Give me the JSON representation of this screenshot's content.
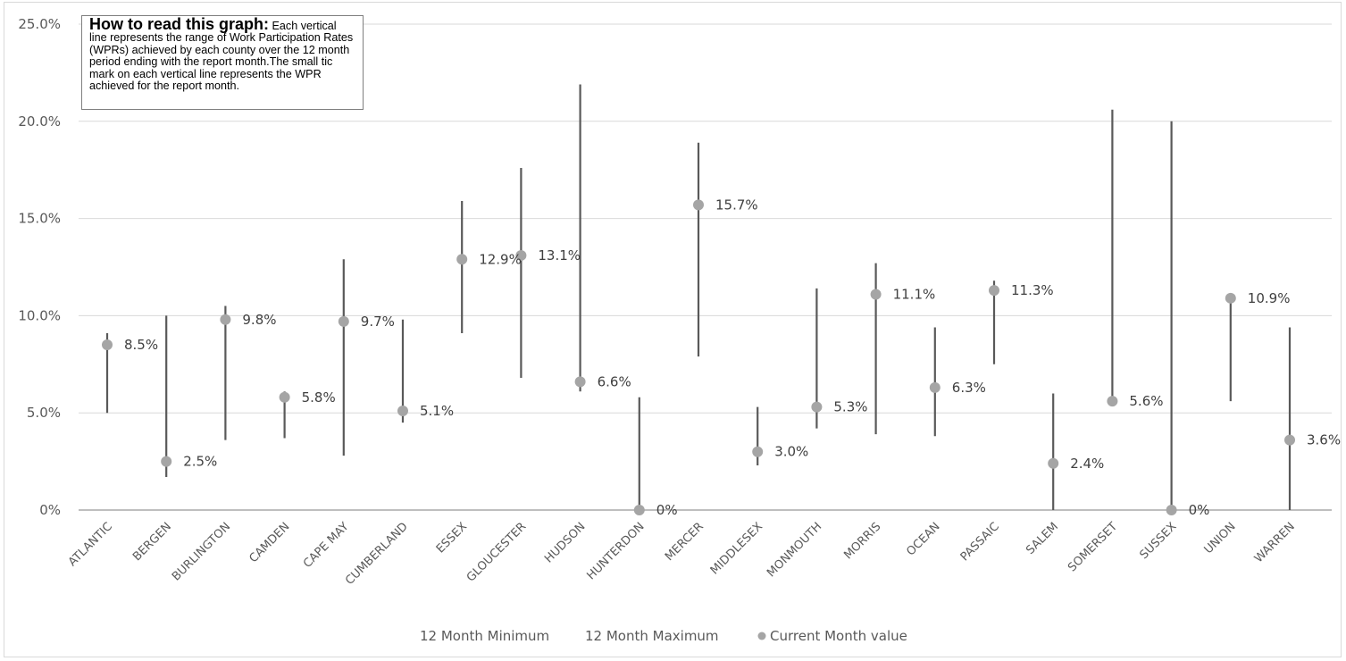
{
  "note": {
    "title": "How to read this graph:",
    "text": "Each vertical line represents the range of Work Participation Rates (WPRs) achieved by each county over the 12 month period ending with the report month.The small tic mark on each vertical line represents the WPR achieved for the report month."
  },
  "colors": {
    "range_line": "#595959",
    "marker": "#a5a5a5",
    "grid": "#d9d9d9",
    "axis": "#bfbfbf"
  },
  "chart_data": {
    "type": "scatter",
    "categories": [
      "ATLANTIC",
      "BERGEN",
      "BURLINGTON",
      "CAMDEN",
      "CAPE MAY",
      "CUMBERLAND",
      "ESSEX",
      "GLOUCESTER",
      "HUDSON",
      "HUNTERDON",
      "MERCER",
      "MIDDLESEX",
      "MONMOUTH",
      "MORRIS",
      "OCEAN",
      "PASSAIC",
      "SALEM",
      "SOMERSET",
      "SUSSEX",
      "UNION",
      "WARREN"
    ],
    "ylim": [
      0,
      25
    ],
    "yticks": [
      0,
      5,
      10,
      15,
      20,
      25
    ],
    "ytick_labels": [
      "0%",
      "5.0%",
      "10.0%",
      "15.0%",
      "20.0%",
      "25.0%"
    ],
    "grid": true,
    "legend_position": "bottom",
    "series": [
      {
        "name": "12 Month Minimum",
        "values": [
          5.0,
          1.7,
          3.6,
          3.7,
          2.8,
          4.5,
          9.1,
          6.8,
          6.1,
          0.0,
          7.9,
          2.3,
          4.2,
          3.9,
          3.8,
          7.5,
          0.0,
          5.5,
          0.0,
          5.6,
          0.0
        ]
      },
      {
        "name": "12 Month Maximum",
        "values": [
          9.1,
          10.0,
          10.5,
          6.1,
          12.9,
          9.8,
          15.9,
          17.6,
          21.9,
          5.8,
          18.9,
          5.3,
          11.4,
          12.7,
          9.4,
          11.8,
          6.0,
          20.6,
          20.0,
          10.9,
          9.4
        ]
      },
      {
        "name": "Current Month value",
        "values": [
          8.5,
          2.5,
          9.8,
          5.8,
          9.7,
          5.1,
          12.9,
          13.1,
          6.6,
          0.0,
          15.7,
          3.0,
          5.3,
          11.1,
          6.3,
          11.3,
          2.4,
          5.6,
          0.0,
          10.9,
          3.6
        ]
      }
    ],
    "data_labels": [
      "8.5%",
      "2.5%",
      "9.8%",
      "5.8%",
      "9.7%",
      "5.1%",
      "12.9%",
      "13.1%",
      "6.6%",
      "0%",
      "15.7%",
      "3.0%",
      "5.3%",
      "11.1%",
      "6.3%",
      "11.3%",
      "2.4%",
      "5.6%",
      "0%",
      "10.9%",
      "3.6%"
    ]
  }
}
